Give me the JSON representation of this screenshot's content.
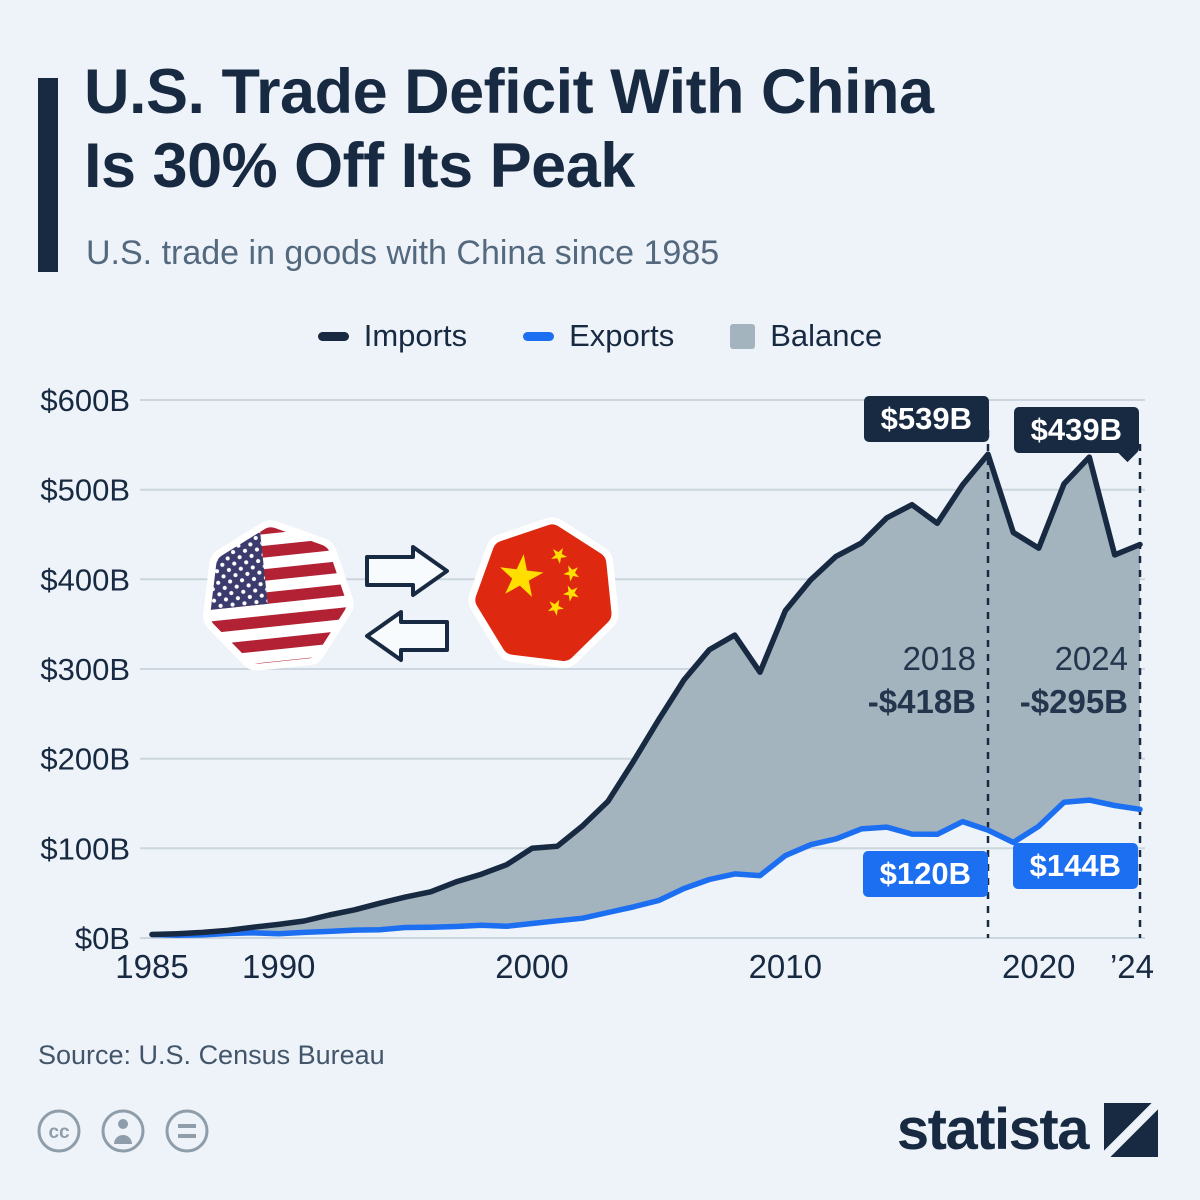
{
  "header": {
    "title_line1": "U.S. Trade Deficit With China",
    "title_line2": "Is 30% Off Its Peak",
    "subtitle": "U.S. trade in goods with China since 1985"
  },
  "legend": {
    "imports": "Imports",
    "exports": "Exports",
    "balance": "Balance"
  },
  "colors": {
    "imports": "#182942",
    "exports": "#1d6ff2",
    "balance": "#a4b4be",
    "background": "#edf3f8"
  },
  "annotations": {
    "imports_2018": "$539B",
    "imports_2024": "$439B",
    "exports_2018": "$120B",
    "exports_2024": "$144B",
    "balance_2018": {
      "year": "2018",
      "value": "-$418B"
    },
    "balance_2024": {
      "year": "2024",
      "value": "-$295B"
    }
  },
  "chart_data": {
    "type": "area",
    "title": "U.S. trade in goods with China since 1985",
    "xlabel": "",
    "ylabel": "",
    "ylim": [
      0,
      600
    ],
    "grid": true,
    "legend_position": "top",
    "x": [
      1985,
      1986,
      1987,
      1988,
      1989,
      1990,
      1991,
      1992,
      1993,
      1994,
      1995,
      1996,
      1997,
      1998,
      1999,
      2000,
      2001,
      2002,
      2003,
      2004,
      2005,
      2006,
      2007,
      2008,
      2009,
      2010,
      2011,
      2012,
      2013,
      2014,
      2015,
      2016,
      2017,
      2018,
      2019,
      2020,
      2021,
      2022,
      2023,
      2024
    ],
    "series": [
      {
        "name": "Imports",
        "color": "#182942",
        "values": [
          3.9,
          4.8,
          6.3,
          8.5,
          12.0,
          15.2,
          19.0,
          25.7,
          31.5,
          38.8,
          45.6,
          51.5,
          62.6,
          71.2,
          81.8,
          100.0,
          102.3,
          125.2,
          152.4,
          196.7,
          243.5,
          287.8,
          321.4,
          337.8,
          296.4,
          364.9,
          399.4,
          425.6,
          440.4,
          468.5,
          483.2,
          462.5,
          505.5,
          539.5,
          452.2,
          434.7,
          506.4,
          536.3,
          427.2,
          438.9
        ]
      },
      {
        "name": "Exports",
        "color": "#1d6ff2",
        "values": [
          3.9,
          3.1,
          3.5,
          5.0,
          5.8,
          4.8,
          6.3,
          7.4,
          8.8,
          9.3,
          11.7,
          12.0,
          12.8,
          14.2,
          13.1,
          16.2,
          19.2,
          22.1,
          28.4,
          34.7,
          41.8,
          55.2,
          65.2,
          71.5,
          69.6,
          91.9,
          104.1,
          110.5,
          121.7,
          123.7,
          115.9,
          115.6,
          129.8,
          120.3,
          106.6,
          124.6,
          151.4,
          153.8,
          147.8,
          143.5
        ]
      }
    ],
    "balance_color": "#a4b4be",
    "y_ticks": [
      "$0B",
      "$100B",
      "$200B",
      "$300B",
      "$400B",
      "$500B",
      "$600B"
    ],
    "x_ticks": [
      {
        "year": 1985,
        "label": "1985"
      },
      {
        "year": 1990,
        "label": "1990"
      },
      {
        "year": 2000,
        "label": "2000"
      },
      {
        "year": 2010,
        "label": "2010"
      },
      {
        "year": 2020,
        "label": "2020"
      },
      {
        "year": 2024,
        "label": "’24"
      }
    ],
    "dashed_years": [
      2018,
      2024
    ]
  },
  "footer": {
    "source": "Source: U.S. Census Bureau",
    "brand": "statista"
  }
}
